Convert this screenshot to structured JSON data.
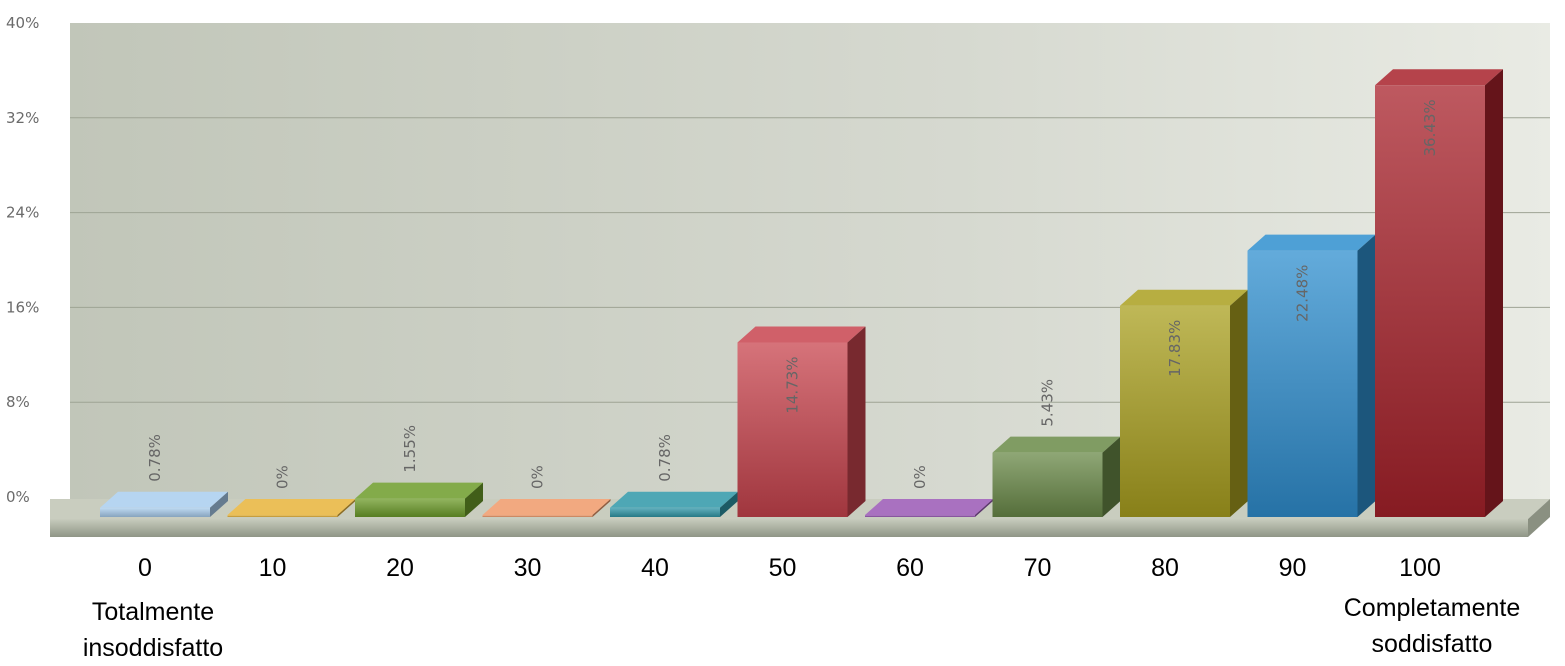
{
  "chart_data": {
    "type": "bar",
    "categories": [
      "0",
      "10",
      "20",
      "30",
      "40",
      "50",
      "60",
      "70",
      "80",
      "90",
      "100"
    ],
    "values": [
      0.78,
      0,
      1.55,
      0,
      0.78,
      14.73,
      0,
      5.43,
      17.83,
      22.48,
      36.43
    ],
    "value_labels": [
      "0.78%",
      "0%",
      "1.55%",
      "0%",
      "0.78%",
      "14.73%",
      "0%",
      "5.43%",
      "17.83%",
      "22.48%",
      "36.43%"
    ],
    "bar_colors": [
      "#a9cdee",
      "#e8b43a",
      "#6d9c2a",
      "#f09a6a",
      "#2f97a8",
      "#c8444e",
      "#9a58b5",
      "#6a8a48",
      "#aaa01f",
      "#2f8fcf",
      "#a8222b"
    ],
    "ylim": [
      0,
      40
    ],
    "yticks": [
      "0%",
      "8%",
      "16%",
      "24%",
      "32%",
      "40%"
    ],
    "grid": true,
    "x_annotations": {
      "left": [
        "Totalmente",
        "insoddisfatto"
      ],
      "right": [
        "Completamente",
        "soddisfatto"
      ]
    },
    "background": [
      "#c3c8bb",
      "#e7e9e2"
    ],
    "floor_color": "#a9ae9f"
  }
}
